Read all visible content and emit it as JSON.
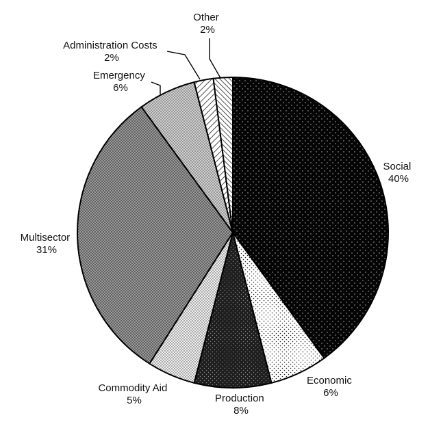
{
  "chart_data": {
    "type": "pie",
    "title": "",
    "slices": [
      {
        "label": "Social",
        "value": 40,
        "value_label": "40%",
        "fill": "social-fill"
      },
      {
        "label": "Economic",
        "value": 6,
        "value_label": "6%",
        "fill": "economic-fill"
      },
      {
        "label": "Production",
        "value": 8,
        "value_label": "8%",
        "fill": "production-fill"
      },
      {
        "label": "Commodity Aid",
        "value": 5,
        "value_label": "5%",
        "fill": "commodity-fill"
      },
      {
        "label": "Multisector",
        "value": 31,
        "value_label": "31%",
        "fill": "multisector-fill"
      },
      {
        "label": "Emergency",
        "value": 6,
        "value_label": "6%",
        "fill": "emergency-fill"
      },
      {
        "label": "Administration Costs",
        "value": 2,
        "value_label": "2%",
        "fill": "admin-fill"
      },
      {
        "label": "Other",
        "value": 2,
        "value_label": "2%",
        "fill": "other-fill"
      }
    ],
    "start_angle": "12 o'clock",
    "direction": "clockwise",
    "legend": "none (direct labels)",
    "colors": [
      "#000000",
      "#ffffff",
      "#1a1a1a",
      "#e6e6e6",
      "#6e6e6e",
      "#bdbdbd"
    ]
  }
}
